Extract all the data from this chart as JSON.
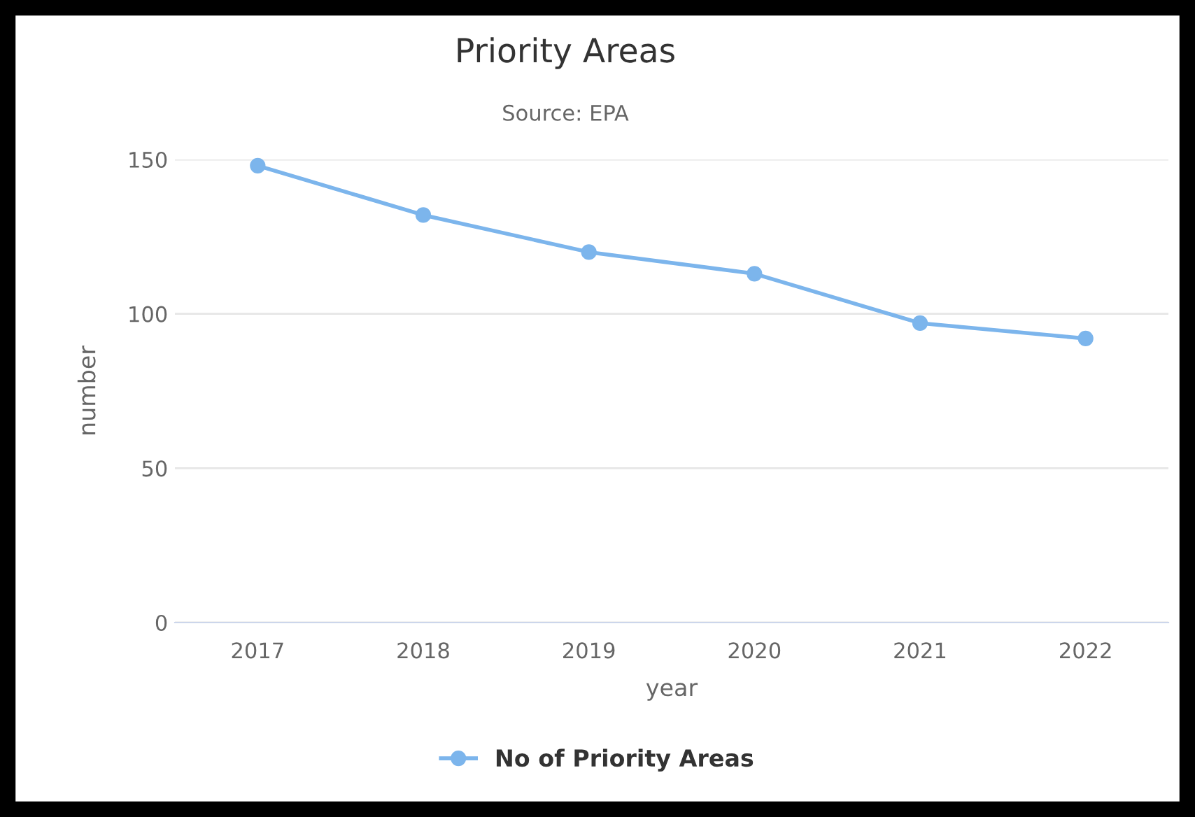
{
  "chart_data": {
    "type": "line",
    "title": "Priority Areas",
    "subtitle": "Source: EPA",
    "xlabel": "year",
    "ylabel": "number",
    "categories": [
      "2017",
      "2018",
      "2019",
      "2020",
      "2021",
      "2022"
    ],
    "series": [
      {
        "name": "No of Priority Areas",
        "color": "#7cb5ec",
        "values": [
          148,
          132,
          120,
          113,
          97,
          92
        ]
      }
    ],
    "ylim": [
      0,
      150
    ],
    "yticks": [
      0,
      50,
      100,
      150
    ],
    "grid": "y",
    "legend": "bottom",
    "marker": "circle",
    "line_style": "solid"
  }
}
